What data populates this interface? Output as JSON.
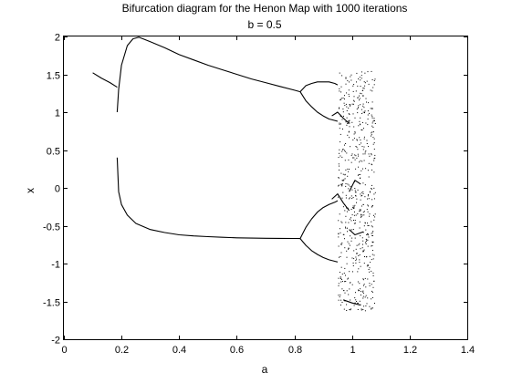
{
  "chart_data": {
    "type": "scatter",
    "title": "Bifurcation diagram for the Henon Map with 1000 iterations",
    "subtitle": "b = 0.5",
    "xlabel": "a",
    "ylabel": "x",
    "xlim": [
      0,
      1.4
    ],
    "ylim": [
      -2,
      2
    ],
    "xticks": [
      "0",
      "0.2",
      "0.4",
      "0.6",
      "0.8",
      "1",
      "1.2",
      "1.4"
    ],
    "yticks": [
      "-2",
      "-1.5",
      "-1",
      "-0.5",
      "0",
      "0.5",
      "1",
      "1.5",
      "2"
    ],
    "grid": false,
    "marker_color": "#000000",
    "branches": [
      {
        "x": [
          0.1,
          0.13,
          0.16,
          0.185
        ],
        "y": [
          1.52,
          1.45,
          1.39,
          1.33
        ]
      },
      {
        "x": [
          0.185,
          0.19,
          0.2,
          0.22,
          0.24,
          0.26,
          0.3,
          0.35,
          0.4,
          0.45,
          0.5,
          0.55,
          0.6,
          0.65,
          0.7,
          0.75,
          0.8,
          0.82
        ],
        "y": [
          1.0,
          1.3,
          1.62,
          1.88,
          1.97,
          1.99,
          1.93,
          1.85,
          1.76,
          1.69,
          1.62,
          1.56,
          1.5,
          1.44,
          1.39,
          1.34,
          1.29,
          1.27
        ]
      },
      {
        "x": [
          0.185,
          0.19,
          0.2,
          0.22,
          0.25,
          0.3,
          0.35,
          0.4,
          0.45,
          0.5,
          0.55,
          0.6,
          0.65,
          0.7,
          0.75,
          0.8,
          0.82
        ],
        "y": [
          0.4,
          -0.05,
          -0.22,
          -0.36,
          -0.47,
          -0.55,
          -0.59,
          -0.62,
          -0.635,
          -0.645,
          -0.653,
          -0.66,
          -0.664,
          -0.666,
          -0.668,
          -0.669,
          -0.67
        ]
      },
      {
        "x": [
          0.82,
          0.84,
          0.86,
          0.88,
          0.9,
          0.92,
          0.94,
          0.95
        ],
        "y": [
          1.27,
          1.35,
          1.38,
          1.4,
          1.4,
          1.4,
          1.38,
          1.36
        ]
      },
      {
        "x": [
          0.82,
          0.84,
          0.86,
          0.88,
          0.9,
          0.92,
          0.94,
          0.95
        ],
        "y": [
          1.27,
          1.15,
          1.07,
          1.0,
          0.95,
          0.91,
          0.89,
          0.88
        ]
      },
      {
        "x": [
          0.82,
          0.84,
          0.86,
          0.88,
          0.9,
          0.92,
          0.94,
          0.95
        ],
        "y": [
          -0.67,
          -0.52,
          -0.41,
          -0.32,
          -0.26,
          -0.22,
          -0.19,
          -0.17
        ]
      },
      {
        "x": [
          0.82,
          0.84,
          0.86,
          0.88,
          0.9,
          0.92,
          0.94,
          0.95
        ],
        "y": [
          -0.67,
          -0.76,
          -0.83,
          -0.88,
          -0.92,
          -0.95,
          -0.97,
          -0.98
        ]
      },
      {
        "x": [
          0.93,
          0.95,
          0.97,
          0.99
        ],
        "y": [
          0.95,
          1.0,
          0.92,
          0.85
        ]
      },
      {
        "x": [
          0.93,
          0.95,
          0.97,
          0.99
        ],
        "y": [
          -0.15,
          -0.08,
          -0.2,
          -0.3
        ]
      },
      {
        "x": [
          0.97,
          1.0,
          1.03
        ],
        "y": [
          -1.48,
          -1.52,
          -1.55
        ]
      },
      {
        "x": [
          0.99,
          1.01,
          1.03
        ],
        "y": [
          -0.05,
          0.1,
          0.05
        ]
      },
      {
        "x": [
          0.99,
          1.01,
          1.04
        ],
        "y": [
          -0.55,
          -0.62,
          -0.58
        ]
      }
    ],
    "chaotic_region": {
      "x_range": [
        0.95,
        1.08
      ],
      "y_range": [
        -1.62,
        1.55
      ],
      "point_count": 620
    }
  }
}
